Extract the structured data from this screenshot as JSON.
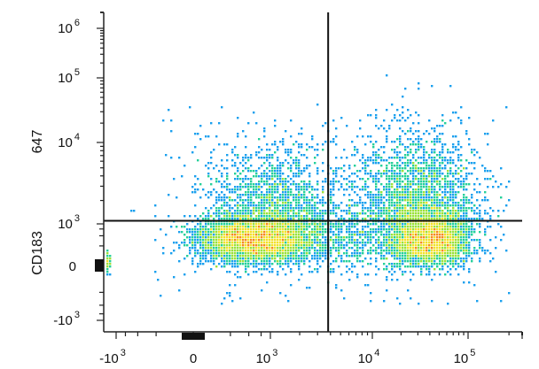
{
  "chart_data": {
    "type": "scatter",
    "title": "",
    "xlabel": "",
    "ylabel": "CD183",
    "ylabel_secondary": "647",
    "x_scale": "biexponential",
    "y_scale": "biexponential",
    "xlim": [
      -1500,
      250000
    ],
    "ylim": [
      -1500,
      2000000
    ],
    "x_ticks": [
      {
        "base": "-10",
        "exp": "3",
        "value": -1000
      },
      {
        "base": "0",
        "exp": "",
        "value": 0
      },
      {
        "base": "10",
        "exp": "3",
        "value": 1000
      },
      {
        "base": "10",
        "exp": "4",
        "value": 10000
      },
      {
        "base": "10",
        "exp": "5",
        "value": 100000
      }
    ],
    "y_ticks": [
      {
        "base": "10",
        "exp": "6",
        "value": 1000000
      },
      {
        "base": "10",
        "exp": "5",
        "value": 100000
      },
      {
        "base": "10",
        "exp": "4",
        "value": 10000
      },
      {
        "base": "10",
        "exp": "3",
        "value": 1000
      },
      {
        "base": "0",
        "exp": "",
        "value": 0
      },
      {
        "base": "-10",
        "exp": "3",
        "value": -1000
      }
    ],
    "quadrant_gates": {
      "x": 3800,
      "y": 1100
    },
    "populations": [
      {
        "center": [
          600,
          400
        ],
        "spread": "wide",
        "share": 0.55
      },
      {
        "center": [
          40000,
          400
        ],
        "spread": "medium",
        "share": 0.45
      }
    ],
    "colormap": [
      "#1e3cc8",
      "#1aa0ee",
      "#25d09a",
      "#9ae23a",
      "#f2e12a",
      "#f58a1e",
      "#e3261c"
    ],
    "grid": false,
    "legend": "none"
  }
}
